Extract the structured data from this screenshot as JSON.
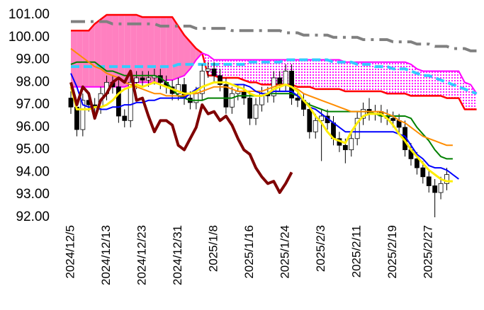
{
  "chart_data": {
    "type": "candlestick",
    "categories": [
      "2024/12/5",
      null,
      null,
      null,
      null,
      null,
      "2024/12/13",
      null,
      null,
      null,
      null,
      null,
      "2024/12/23",
      null,
      null,
      null,
      null,
      null,
      "2024/12/31",
      null,
      null,
      null,
      null,
      null,
      "2025/1/8",
      null,
      null,
      null,
      null,
      null,
      "2025/1/16",
      null,
      null,
      null,
      null,
      null,
      "2025/1/24",
      null,
      null,
      null,
      null,
      null,
      "2025/2/3",
      null,
      null,
      null,
      null,
      null,
      "2025/2/11",
      null,
      null,
      null,
      null,
      null,
      "2025/2/19",
      null,
      null,
      null,
      null,
      null,
      "2025/2/27",
      null,
      null,
      null,
      null,
      null,
      null,
      null,
      null,
      null
    ],
    "ylim": [
      92,
      101
    ],
    "yticks": [
      {
        "value": 92,
        "label": "92.00"
      },
      {
        "value": 93,
        "label": "93.00"
      },
      {
        "value": 94,
        "label": "94.00"
      },
      {
        "value": 95,
        "label": "95.00"
      },
      {
        "value": 96,
        "label": "96.00"
      },
      {
        "value": 97,
        "label": "97.00"
      },
      {
        "value": 98,
        "label": "98.00"
      },
      {
        "value": 99,
        "label": "99.00"
      },
      {
        "value": 100,
        "label": "100.00"
      },
      {
        "value": 101,
        "label": "101.00"
      }
    ],
    "grid": false,
    "up_color": "#ffffff",
    "down_color": "#000000",
    "open": [
      97.3,
      96.9,
      95.9,
      97.2,
      97.0,
      96.9,
      97.5,
      98.0,
      97.8,
      96.5,
      96.3,
      98.0,
      98.2,
      98.1,
      98.2,
      98.3,
      98.0,
      97.8,
      97.5,
      97.9,
      97.3,
      97.1,
      97.5,
      98.5,
      98.6,
      98.3,
      97.9,
      96.9,
      97.5,
      97.6,
      97.3,
      96.4,
      97.0,
      97.5,
      97.4,
      98.2,
      97.9,
      98.5,
      97.3,
      97.2,
      96.8,
      95.8,
      96.3,
      96.5,
      96.2,
      95.5,
      95.2,
      95.0,
      95.5,
      96.4,
      96.8,
      96.6,
      96.7,
      96.5,
      96.4,
      96.3,
      96.0,
      95.0,
      94.6,
      94.2,
      93.8,
      93.4,
      93.1,
      93.5,
      null,
      null,
      null,
      null,
      null,
      null
    ],
    "high": [
      97.6,
      97.2,
      97.5,
      97.5,
      97.3,
      97.8,
      98.3,
      98.3,
      98.1,
      96.8,
      98.3,
      98.5,
      98.5,
      98.5,
      98.6,
      98.6,
      98.3,
      98.1,
      98.2,
      98.2,
      97.6,
      97.8,
      98.8,
      98.9,
      98.9,
      98.6,
      98.2,
      97.8,
      97.9,
      97.9,
      97.6,
      97.3,
      97.8,
      97.8,
      98.5,
      98.5,
      98.8,
      98.8,
      97.6,
      97.5,
      97.1,
      96.6,
      96.8,
      96.8,
      96.5,
      95.8,
      95.5,
      95.8,
      96.7,
      97.1,
      97.3,
      97.0,
      97.0,
      96.8,
      96.7,
      96.6,
      96.3,
      95.3,
      94.9,
      94.5,
      94.1,
      93.7,
      93.8,
      94.2,
      null,
      null,
      null,
      null,
      null,
      null
    ],
    "low": [
      96.6,
      95.6,
      95.6,
      96.7,
      96.6,
      96.6,
      97.2,
      97.5,
      96.2,
      96.0,
      96.0,
      97.7,
      97.8,
      97.8,
      97.9,
      97.7,
      97.5,
      97.2,
      97.2,
      97.0,
      96.8,
      96.8,
      97.2,
      98.2,
      98.0,
      97.6,
      96.6,
      96.6,
      97.2,
      97.0,
      96.1,
      96.1,
      96.7,
      97.1,
      97.1,
      97.6,
      97.6,
      97.0,
      96.9,
      96.5,
      95.5,
      95.5,
      94.5,
      95.9,
      95.2,
      94.9,
      94.4,
      94.7,
      95.2,
      96.1,
      96.3,
      96.3,
      96.2,
      96.1,
      96.0,
      95.7,
      94.7,
      94.3,
      93.9,
      93.5,
      93.1,
      92.0,
      92.8,
      93.2,
      null,
      null,
      null,
      null,
      null,
      null
    ],
    "close": [
      96.9,
      95.9,
      97.2,
      97.0,
      96.9,
      97.5,
      98.0,
      97.8,
      96.5,
      96.3,
      98.0,
      98.2,
      98.1,
      98.2,
      98.3,
      98.0,
      97.8,
      97.5,
      97.9,
      97.3,
      97.1,
      97.5,
      98.5,
      98.6,
      98.3,
      97.9,
      96.9,
      97.5,
      97.6,
      97.3,
      96.4,
      97.0,
      97.5,
      97.4,
      98.2,
      97.9,
      98.5,
      97.3,
      97.2,
      96.8,
      95.8,
      96.3,
      96.5,
      96.2,
      95.5,
      95.2,
      95.0,
      95.5,
      96.4,
      96.8,
      96.6,
      96.7,
      96.5,
      96.4,
      96.3,
      96.0,
      95.0,
      94.6,
      94.2,
      93.8,
      93.4,
      93.1,
      93.5,
      93.9,
      null,
      null,
      null,
      null,
      null,
      null
    ],
    "series": [
      {
        "color": "#ff0000",
        "width": 2.5,
        "fill": "#ff80c0",
        "values": [
          100.3,
          100.3,
          100.3,
          100.3,
          100.6,
          100.8,
          101.0,
          101.0,
          101.0,
          101.0,
          101.0,
          101.0,
          100.9,
          100.9,
          100.9,
          100.9,
          100.9,
          100.9,
          100.5,
          100.1,
          99.8,
          99.5,
          99.3,
          98.3,
          98.3,
          98.2,
          98.2,
          98.2,
          98.2,
          98.1,
          98.0,
          98.0,
          97.9,
          97.9,
          97.9,
          97.9,
          97.9,
          97.9,
          97.8,
          97.8,
          97.8,
          97.7,
          97.7,
          97.7,
          97.7,
          97.7,
          97.6,
          97.6,
          97.6,
          97.6,
          97.6,
          97.6,
          97.6,
          97.5,
          97.5,
          97.5,
          97.5,
          97.4,
          97.4,
          97.4,
          97.4,
          97.4,
          97.4,
          97.3,
          97.3,
          97.3,
          96.8,
          96.8,
          96.8,
          null
        ]
      },
      {
        "color": "#ff00ff",
        "width": 2,
        "fill": "#ff00ff",
        "fill_pattern": "dots",
        "values": [
          97.8,
          97.8,
          97.8,
          97.8,
          97.8,
          97.8,
          97.8,
          97.8,
          97.8,
          97.8,
          97.9,
          98.0,
          98.0,
          98.0,
          98.0,
          98.0,
          98.1,
          98.1,
          98.2,
          98.3,
          98.6,
          99.0,
          99.3,
          99.2,
          99.0,
          99.0,
          99.0,
          99.0,
          99.0,
          99.0,
          99.0,
          99.0,
          99.0,
          99.0,
          99.0,
          99.0,
          99.0,
          99.0,
          99.0,
          99.0,
          99.0,
          99.0,
          99.0,
          99.0,
          99.0,
          99.0,
          98.9,
          98.9,
          98.9,
          98.9,
          98.9,
          98.9,
          98.9,
          98.9,
          98.9,
          98.9,
          98.9,
          98.8,
          98.6,
          98.5,
          98.5,
          98.5,
          98.5,
          98.5,
          98.5,
          98.5,
          98.0,
          97.9,
          97.5,
          null
        ]
      },
      {
        "color": "#808080",
        "width": 4,
        "dash": "dashdot",
        "values": [
          100.7,
          100.7,
          100.7,
          100.7,
          100.7,
          100.7,
          100.7,
          100.6,
          100.6,
          100.6,
          100.6,
          100.6,
          100.6,
          100.6,
          100.6,
          100.5,
          100.5,
          100.5,
          100.5,
          100.5,
          100.5,
          100.4,
          100.4,
          100.4,
          100.4,
          100.4,
          100.4,
          100.3,
          100.3,
          100.3,
          100.3,
          100.3,
          100.3,
          100.3,
          100.3,
          100.3,
          100.2,
          100.2,
          100.2,
          100.1,
          100.1,
          100.1,
          100.1,
          100.1,
          100.0,
          100.0,
          100.0,
          100.0,
          100.0,
          99.9,
          99.9,
          99.9,
          99.9,
          99.9,
          99.8,
          99.8,
          99.8,
          99.8,
          99.7,
          99.7,
          99.7,
          99.6,
          99.6,
          99.6,
          99.5,
          99.5,
          99.5,
          99.4,
          99.4,
          null
        ]
      },
      {
        "color": "#33ccff",
        "width": 4,
        "dash": "dash",
        "values": [
          98.7,
          98.7,
          98.7,
          98.7,
          98.7,
          98.7,
          98.7,
          98.7,
          98.7,
          98.7,
          98.7,
          98.7,
          98.7,
          98.7,
          98.7,
          98.7,
          98.7,
          98.7,
          98.8,
          98.8,
          98.8,
          98.8,
          98.8,
          98.8,
          98.8,
          98.8,
          98.8,
          98.8,
          98.8,
          98.8,
          98.9,
          98.9,
          98.9,
          98.9,
          98.9,
          98.9,
          99.0,
          99.0,
          99.0,
          99.0,
          99.0,
          99.0,
          99.0,
          99.0,
          98.9,
          98.9,
          98.9,
          98.9,
          98.8,
          98.8,
          98.8,
          98.7,
          98.7,
          98.7,
          98.6,
          98.6,
          98.6,
          98.5,
          98.4,
          98.3,
          98.3,
          98.2,
          98.1,
          98.0,
          97.9,
          97.8,
          97.7,
          97.6,
          97.5,
          null
        ]
      },
      {
        "color": "#008000",
        "width": 2,
        "values": [
          98.8,
          98.9,
          98.9,
          98.9,
          98.9,
          98.7,
          98.5,
          98.5,
          98.4,
          98.3,
          98.3,
          98.3,
          98.3,
          98.3,
          98.3,
          98.2,
          98.0,
          97.7,
          97.4,
          97.3,
          97.2,
          97.2,
          97.2,
          97.3,
          97.3,
          97.3,
          97.3,
          97.3,
          97.4,
          97.4,
          97.4,
          97.4,
          97.4,
          97.5,
          97.5,
          97.5,
          97.5,
          97.5,
          97.4,
          97.2,
          97.0,
          96.9,
          96.8,
          96.7,
          96.7,
          96.7,
          96.7,
          96.7,
          96.7,
          96.7,
          96.7,
          96.6,
          96.5,
          96.5,
          96.5,
          96.5,
          96.5,
          96.4,
          96.0,
          95.7,
          95.4,
          95.0,
          94.7,
          94.6,
          94.6,
          null,
          null,
          null,
          null,
          null
        ]
      },
      {
        "color": "#ff8c00",
        "width": 2,
        "values": [
          99.5,
          99.3,
          99.1,
          98.9,
          98.7,
          98.6,
          98.4,
          98.3,
          98.2,
          98.0,
          97.9,
          97.8,
          97.7,
          97.6,
          97.5,
          97.5,
          97.4,
          97.4,
          97.4,
          97.4,
          97.5,
          97.5,
          97.6,
          97.7,
          97.8,
          97.8,
          97.8,
          97.7,
          97.6,
          97.6,
          97.6,
          97.6,
          97.6,
          97.7,
          97.8,
          97.9,
          97.9,
          97.8,
          97.7,
          97.5,
          97.4,
          97.3,
          97.2,
          97.1,
          97.0,
          96.9,
          96.8,
          96.7,
          96.7,
          96.7,
          96.7,
          96.7,
          96.7,
          96.6,
          96.5,
          96.3,
          96.2,
          96.0,
          95.8,
          95.6,
          95.5,
          95.4,
          95.3,
          95.2,
          95.2,
          null,
          null,
          null,
          null,
          null
        ]
      },
      {
        "color": "#0000ff",
        "width": 2,
        "values": [
          98.4,
          97.8,
          97.0,
          96.9,
          96.9,
          96.8,
          96.8,
          96.9,
          96.9,
          97.0,
          97.0,
          97.1,
          97.1,
          97.2,
          97.2,
          97.3,
          97.3,
          97.3,
          97.3,
          97.3,
          97.5,
          97.7,
          97.8,
          97.9,
          98.0,
          98.0,
          98.0,
          97.9,
          97.9,
          97.9,
          97.8,
          97.6,
          97.5,
          97.5,
          97.6,
          97.6,
          97.6,
          97.6,
          97.4,
          97.2,
          96.9,
          96.8,
          96.6,
          96.4,
          96.2,
          96.0,
          95.8,
          95.8,
          95.8,
          95.8,
          95.8,
          95.8,
          95.8,
          95.8,
          95.8,
          95.7,
          95.6,
          95.2,
          94.8,
          94.6,
          94.3,
          94.2,
          94.2,
          94.1,
          93.9,
          93.7,
          null,
          null,
          null,
          null
        ]
      },
      {
        "color": "#ffee00",
        "width": 3,
        "values": [
          97.8,
          96.8,
          96.8,
          96.8,
          96.9,
          96.9,
          97.0,
          97.2,
          97.5,
          97.7,
          97.8,
          97.9,
          97.8,
          97.9,
          98.0,
          97.9,
          97.8,
          97.7,
          97.6,
          97.5,
          97.5,
          97.6,
          97.8,
          97.9,
          98.0,
          98.0,
          98.0,
          97.9,
          97.8,
          97.7,
          97.5,
          97.4,
          97.4,
          97.5,
          97.7,
          97.8,
          97.9,
          97.8,
          97.6,
          97.2,
          96.9,
          96.5,
          96.2,
          95.8,
          95.5,
          95.4,
          95.3,
          95.8,
          96.2,
          96.5,
          96.6,
          96.6,
          96.6,
          96.4,
          96.1,
          95.7,
          95.4,
          95.0,
          94.7,
          94.4,
          94.1,
          93.9,
          93.7,
          93.6,
          93.6,
          null,
          null,
          null,
          null,
          null
        ]
      },
      {
        "color": "#800000",
        "width": 4,
        "values": [
          98.0,
          97.0,
          97.8,
          97.5,
          96.4,
          97.2,
          97.5,
          98.0,
          98.2,
          98.0,
          98.5,
          97.2,
          97.3,
          96.5,
          95.8,
          96.3,
          96.3,
          96.1,
          95.2,
          95.0,
          95.5,
          96.0,
          97.0,
          96.6,
          96.7,
          96.3,
          96.5,
          96.1,
          95.5,
          95.0,
          94.8,
          94.2,
          93.8,
          93.5,
          93.6,
          93.1,
          93.5,
          94.0,
          null,
          null,
          null,
          null,
          null,
          null,
          null,
          null,
          null,
          null,
          null,
          null,
          null,
          null,
          null,
          null,
          null,
          null,
          null,
          null,
          null,
          null,
          null,
          null,
          null,
          null,
          null,
          null,
          null,
          null,
          null,
          null
        ]
      }
    ]
  }
}
